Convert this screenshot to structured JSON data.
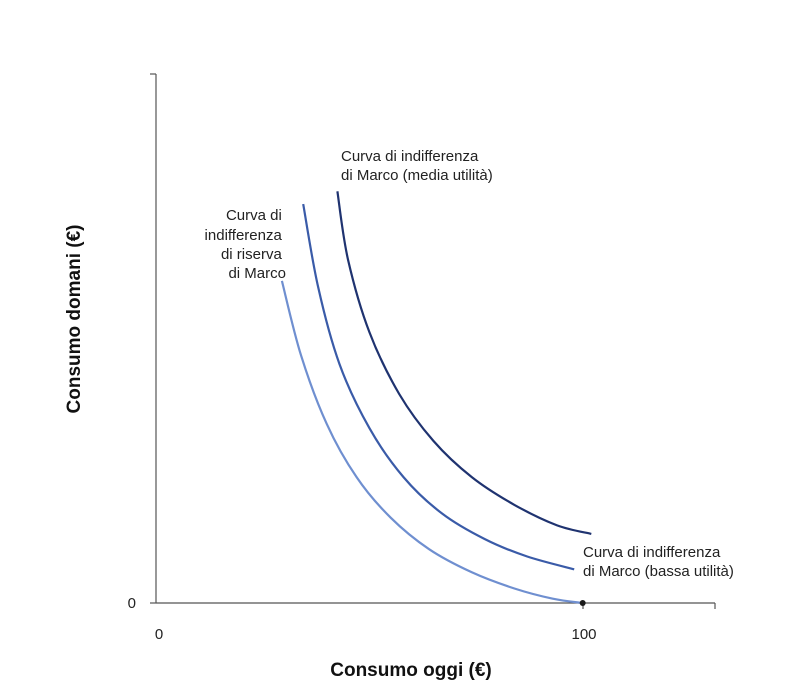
{
  "chart_data": {
    "type": "line",
    "title": "",
    "xlabel": "Consumo oggi (€)",
    "ylabel": "Consumo domani (€)",
    "xlim": [
      0,
      131
    ],
    "ylim": [
      0,
      124
    ],
    "grid": false,
    "x_ticks": [
      {
        "value": 0,
        "label": "0"
      },
      {
        "value": 100,
        "label": "100"
      }
    ],
    "y_ticks": [
      {
        "value": 0,
        "label": "0"
      }
    ],
    "series": [
      {
        "name": "Curva di indifferenza di riserva di Marco",
        "color": "#6f8fd0",
        "x": [
          29.5,
          34,
          40,
          47,
          55,
          64,
          74,
          84,
          93,
          100
        ],
        "y": [
          75.5,
          58,
          42,
          29.5,
          20,
          12.6,
          7.2,
          3.4,
          1.0,
          0
        ]
      },
      {
        "name": "Curva di indifferenza di Marco (bassa utilità)",
        "color": "#3a5ba8",
        "x": [
          34.5,
          38,
          43,
          50,
          58,
          67,
          77,
          87,
          98
        ],
        "y": [
          93.5,
          74,
          56,
          41,
          29.5,
          21,
          15,
          10.9,
          7.9
        ]
      },
      {
        "name": "Curva di indifferenza di Marco (media utilità)",
        "color": "#1f3370",
        "x": [
          42.5,
          45,
          50,
          57,
          65,
          74,
          84,
          94,
          102
        ],
        "y": [
          96.5,
          80.5,
          63.5,
          49,
          38,
          29.5,
          23,
          18.2,
          16.2
        ]
      }
    ],
    "points": [
      {
        "x": 100,
        "y": 0
      }
    ],
    "annotations": [
      {
        "lines": [
          "Curva di",
          "indifferenza",
          "di riserva",
          "di Marco"
        ]
      },
      {
        "lines": [
          "Curva di indifferenza",
          "di Marco (media utilità)"
        ]
      },
      {
        "lines": [
          "Curva di indifferenza",
          "di Marco (bassa utilità)"
        ]
      }
    ]
  }
}
